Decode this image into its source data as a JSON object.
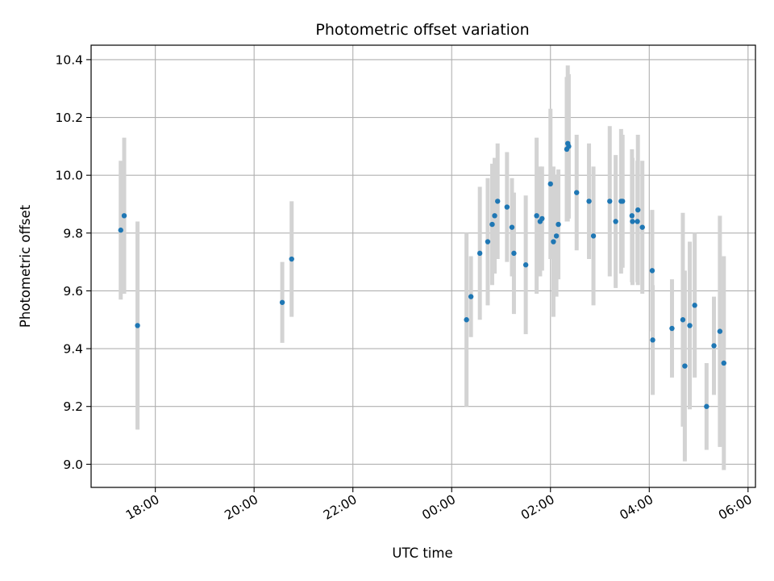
{
  "chart_data": {
    "type": "scatter",
    "title": "Photometric offset variation",
    "xlabel": "UTC time",
    "ylabel": "Photometric offset",
    "grid": true,
    "ylim": [
      8.92,
      10.45
    ],
    "xlim_hours": [
      16.7,
      30.15
    ],
    "x_ticks": [
      {
        "hours": 18,
        "label": "18:00"
      },
      {
        "hours": 20,
        "label": "20:00"
      },
      {
        "hours": 22,
        "label": "22:00"
      },
      {
        "hours": 24,
        "label": "00:00"
      },
      {
        "hours": 26,
        "label": "02:00"
      },
      {
        "hours": 28,
        "label": "04:00"
      },
      {
        "hours": 30,
        "label": "06:00"
      }
    ],
    "y_ticks": [
      {
        "value": 9.0,
        "label": "9.0"
      },
      {
        "value": 9.2,
        "label": "9.2"
      },
      {
        "value": 9.4,
        "label": "9.4"
      },
      {
        "value": 9.6,
        "label": "9.6"
      },
      {
        "value": 9.8,
        "label": "9.8"
      },
      {
        "value": 10.0,
        "label": "10.0"
      },
      {
        "value": 10.2,
        "label": "10.2"
      },
      {
        "value": 10.4,
        "label": "10.4"
      }
    ],
    "colors": {
      "marker": "#1f77b4",
      "error_bar": "#d3d3d3",
      "grid": "#b0b0b0",
      "axis": "#000000"
    },
    "series": [
      {
        "name": "Photometric offset",
        "x_hours": [
          17.3,
          17.37,
          17.64,
          20.57,
          20.76,
          24.3,
          24.39,
          24.57,
          24.73,
          24.82,
          24.87,
          24.93,
          25.12,
          25.22,
          25.26,
          25.5,
          25.72,
          25.79,
          25.83,
          26.0,
          26.06,
          26.12,
          26.16,
          26.33,
          26.35,
          26.37,
          26.53,
          26.78,
          26.87,
          27.2,
          27.32,
          27.43,
          27.46,
          27.65,
          27.66,
          27.76,
          27.77,
          27.86,
          28.06,
          28.07,
          28.46,
          28.68,
          28.72,
          28.82,
          28.92,
          29.16,
          29.31,
          29.43,
          29.51
        ],
        "y": [
          9.81,
          9.86,
          9.48,
          9.56,
          9.71,
          9.5,
          9.58,
          9.73,
          9.77,
          9.83,
          9.86,
          9.91,
          9.89,
          9.82,
          9.73,
          9.69,
          9.86,
          9.84,
          9.85,
          9.97,
          9.77,
          9.79,
          9.83,
          10.09,
          10.11,
          10.1,
          9.94,
          9.91,
          9.79,
          9.91,
          9.84,
          9.91,
          9.91,
          9.86,
          9.84,
          9.84,
          9.88,
          9.82,
          9.67,
          9.43,
          9.47,
          9.5,
          9.34,
          9.48,
          9.55,
          9.2,
          9.41,
          9.46,
          9.35
        ],
        "yerr": [
          0.24,
          0.27,
          0.36,
          0.14,
          0.2,
          0.3,
          0.14,
          0.23,
          0.22,
          0.21,
          0.2,
          0.2,
          0.19,
          0.17,
          0.21,
          0.24,
          0.27,
          0.19,
          0.18,
          0.26,
          0.26,
          0.21,
          0.19,
          0.25,
          0.27,
          0.25,
          0.2,
          0.2,
          0.24,
          0.26,
          0.23,
          0.25,
          0.23,
          0.23,
          0.22,
          0.21,
          0.26,
          0.23,
          0.21,
          0.19,
          0.17,
          0.37,
          0.33,
          0.29,
          0.25,
          0.15,
          0.17,
          0.4,
          0.37
        ]
      }
    ]
  }
}
